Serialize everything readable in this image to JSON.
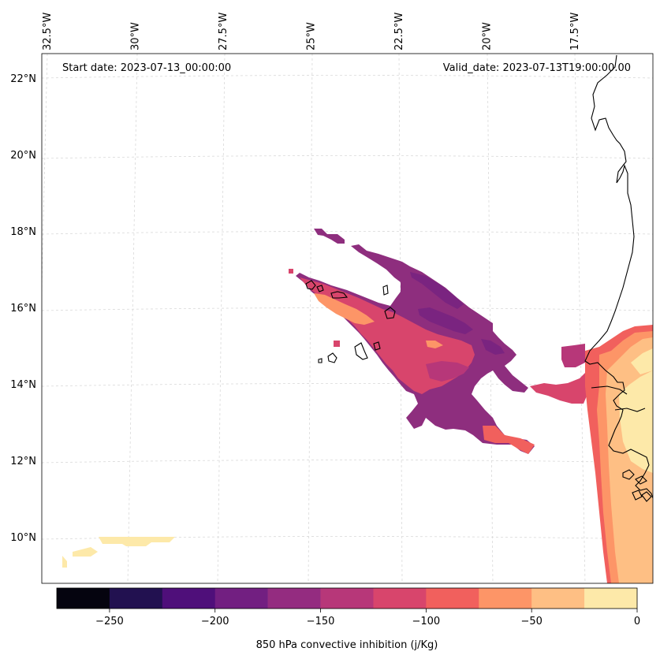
{
  "map": {
    "start_date": "Start date: 2023-07-13_00:00:00",
    "valid_date": "Valid_date: 2023-07-13T19:00:00.00",
    "lon_labels": [
      {
        "text": "32.5°W",
        "lon": -32.5
      },
      {
        "text": "30°W",
        "lon": -30
      },
      {
        "text": "27.5°W",
        "lon": -27.5
      },
      {
        "text": "25°W",
        "lon": -25
      },
      {
        "text": "22.5°W",
        "lon": -22.5
      },
      {
        "text": "20°W",
        "lon": -20
      },
      {
        "text": "17.5°W",
        "lon": -17.5
      }
    ],
    "lat_labels": [
      {
        "text": "22°N",
        "lat": 22
      },
      {
        "text": "20°N",
        "lat": 20
      },
      {
        "text": "18°N",
        "lat": 18
      },
      {
        "text": "16°N",
        "lat": 16
      },
      {
        "text": "14°N",
        "lat": 14
      },
      {
        "text": "12°N",
        "lat": 12
      },
      {
        "text": "10°N",
        "lat": 10
      }
    ]
  },
  "colorbar": {
    "label": "850 hPa convective inhibition (j/Kg)",
    "range": [
      -275,
      0
    ],
    "levels": [
      -275,
      -250,
      -225,
      -200,
      -175,
      -150,
      -125,
      -100,
      -75,
      -50,
      -25,
      0
    ],
    "colors": [
      "#05040f",
      "#221150",
      "#4f0f7a",
      "#721f81",
      "#942c80",
      "#b73779",
      "#d8456c",
      "#f1605d",
      "#fd9567",
      "#febf84",
      "#fde9a9"
    ],
    "ticks": [
      {
        "value": -250,
        "text": "−250"
      },
      {
        "value": -200,
        "text": "−200"
      },
      {
        "value": -150,
        "text": "−150"
      },
      {
        "value": -100,
        "text": "−100"
      },
      {
        "value": -50,
        "text": "−50"
      },
      {
        "value": 0,
        "text": "0"
      }
    ]
  },
  "field_colors": {
    "c1": "#8e2e7e",
    "c2": "#b73779",
    "c3": "#d8456c",
    "c4": "#f1605d",
    "c5": "#fd9567",
    "c6": "#febf84",
    "c7": "#fde9a9",
    "c8": "#7a2480"
  }
}
